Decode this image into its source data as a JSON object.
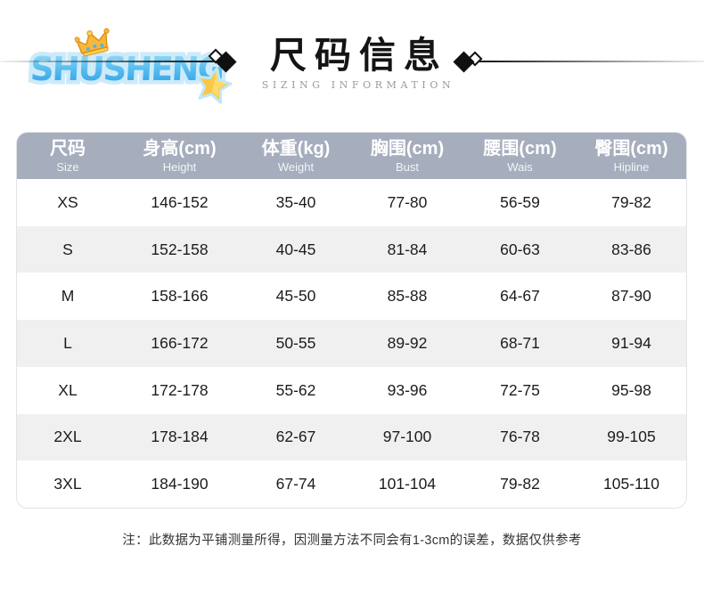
{
  "brand": {
    "logo_text": "SHUSHENG"
  },
  "header": {
    "title": "尺码信息",
    "subtitle": "SIZING INFORMATION"
  },
  "table": {
    "columns": [
      {
        "zh": "尺码",
        "en": "Size"
      },
      {
        "zh": "身高(cm)",
        "en": "Height"
      },
      {
        "zh": "体重(kg)",
        "en": "Weight"
      },
      {
        "zh": "胸围(cm)",
        "en": "Bust"
      },
      {
        "zh": "腰围(cm)",
        "en": "Wais"
      },
      {
        "zh": "臀围(cm)",
        "en": "Hipline"
      }
    ],
    "rows": [
      [
        "XS",
        "146-152",
        "35-40",
        "77-80",
        "56-59",
        "79-82"
      ],
      [
        "S",
        "152-158",
        "40-45",
        "81-84",
        "60-63",
        "83-86"
      ],
      [
        "M",
        "158-166",
        "45-50",
        "85-88",
        "64-67",
        "87-90"
      ],
      [
        "L",
        "166-172",
        "50-55",
        "89-92",
        "68-71",
        "91-94"
      ],
      [
        "XL",
        "172-178",
        "55-62",
        "93-96",
        "72-75",
        "95-98"
      ],
      [
        "2XL",
        "178-184",
        "62-67",
        "97-100",
        "76-78",
        "99-105"
      ],
      [
        "3XL",
        "184-190",
        "67-74",
        "101-104",
        "79-82",
        "105-110"
      ]
    ]
  },
  "footer": {
    "note": "注：此数据为平铺测量所得，因测量方法不同会有1-3cm的误差，数据仅供参考"
  },
  "colors": {
    "header_bg": "#a6aebd",
    "alt_row": "#f0f0f0",
    "line_black": "#101010",
    "logo_blue": "#2d9de4",
    "crown_gold": "#f6b93b"
  }
}
